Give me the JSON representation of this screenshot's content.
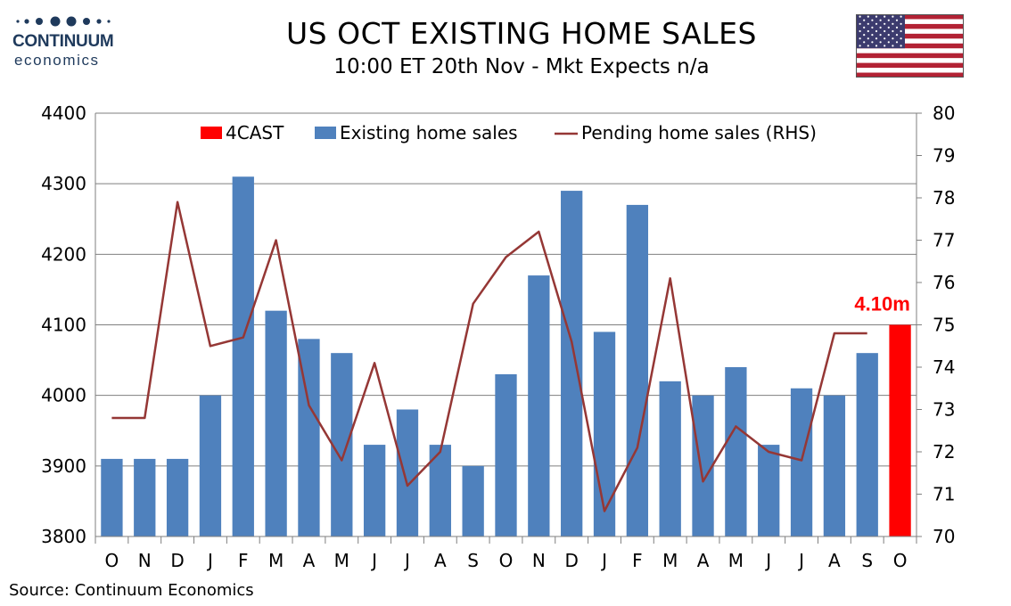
{
  "header": {
    "logo_name": "CONTINUUM",
    "logo_sub": "economics",
    "title": "US OCT EXISTING HOME SALES",
    "subtitle": "10:00 ET 20th Nov - Mkt Expects n/a"
  },
  "footer": {
    "source": "Source: Continuum Economics"
  },
  "colors": {
    "bar": "#4f81bd",
    "forecast": "#ff0000",
    "line": "#953735",
    "logo": "#1f3a5c"
  },
  "icons": {
    "flag": "us-flag-icon",
    "logo_dots": "logo-dots-icon"
  },
  "chart_data": {
    "type": "bar",
    "categories": [
      "O",
      "N",
      "D",
      "J",
      "F",
      "M",
      "A",
      "M",
      "J",
      "J",
      "A",
      "S",
      "O",
      "N",
      "D",
      "J",
      "F",
      "M",
      "A",
      "M",
      "J",
      "J",
      "A",
      "S",
      "O"
    ],
    "series": [
      {
        "name": "Existing home sales",
        "type": "bar",
        "axis": "left",
        "values": [
          3910,
          3910,
          3910,
          4000,
          4310,
          4120,
          4080,
          4060,
          3930,
          3980,
          3930,
          3900,
          4030,
          4170,
          4290,
          4090,
          4270,
          4020,
          4000,
          4040,
          3930,
          4010,
          4000,
          4060,
          null
        ]
      },
      {
        "name": "4CAST",
        "type": "bar",
        "axis": "left",
        "values": [
          null,
          null,
          null,
          null,
          null,
          null,
          null,
          null,
          null,
          null,
          null,
          null,
          null,
          null,
          null,
          null,
          null,
          null,
          null,
          null,
          null,
          null,
          null,
          null,
          4100
        ]
      },
      {
        "name": "Pending home sales (RHS)",
        "type": "line",
        "axis": "right",
        "values": [
          72.8,
          72.8,
          77.9,
          74.5,
          74.7,
          77.0,
          73.1,
          71.8,
          74.1,
          71.2,
          72.0,
          75.5,
          76.6,
          77.2,
          74.6,
          70.6,
          72.1,
          76.1,
          71.3,
          72.6,
          72.0,
          71.8,
          74.8,
          74.8,
          null
        ]
      }
    ],
    "legend": [
      "4CAST",
      "Existing home sales",
      "Pending home sales (RHS)"
    ],
    "legend_position": "top",
    "ylim": [
      3800,
      4400
    ],
    "y_ticks": [
      3800,
      3900,
      4000,
      4100,
      4200,
      4300,
      4400
    ],
    "y2lim": [
      70,
      80
    ],
    "y2_ticks": [
      70,
      71,
      72,
      73,
      74,
      75,
      76,
      77,
      78,
      79,
      80
    ],
    "grid": true,
    "annotation": "4.10m",
    "xlabel": "",
    "ylabel": ""
  }
}
